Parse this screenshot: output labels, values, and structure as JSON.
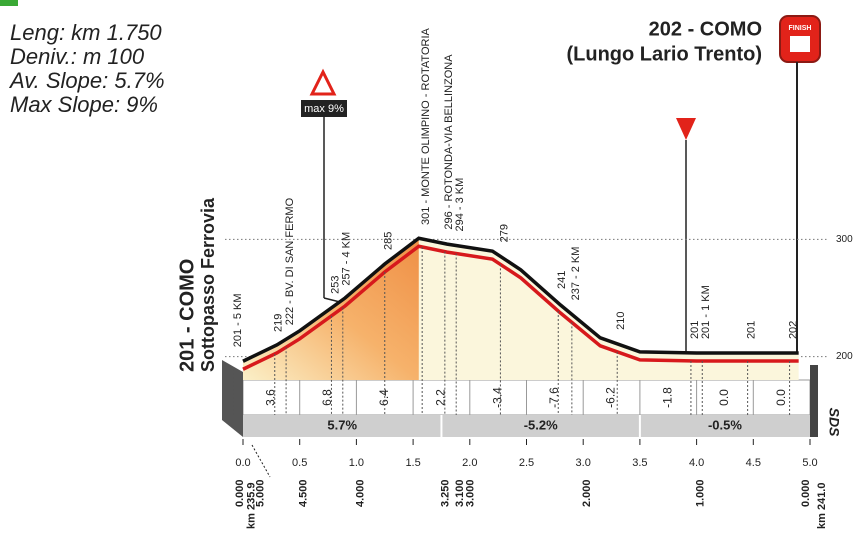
{
  "info": {
    "length": "Leng: km 1.750",
    "elevation_gain": "Deniv.: m 100",
    "average_slope": "Av. Slope: 5.7%",
    "max_slope": "Max Slope: 9%"
  },
  "start": {
    "name": "201 - COMO",
    "place": "Sottopasso Ferrovia"
  },
  "finish": {
    "name": "202 - COMO",
    "place": "(Lungo Lario Trento)",
    "icon": "FINISH"
  },
  "max_slope_marker": "max 9%",
  "brand": "SDS",
  "chart_data": {
    "type": "area",
    "x": [
      0,
      0.3,
      0.5,
      0.9,
      1.25,
      1.55,
      1.8,
      2.2,
      2.45,
      2.8,
      3.15,
      3.5,
      4.0,
      4.9
    ],
    "values": [
      196,
      210,
      222,
      250,
      279,
      301,
      296,
      290,
      274,
      244,
      216,
      204,
      203,
      203
    ],
    "xlim": [
      0,
      5.0
    ],
    "ylim": [
      180,
      320
    ],
    "xticks": [
      {
        "value": 0,
        "label": "0.0"
      },
      0.5,
      {
        "value": 1,
        "label": "1.0"
      },
      1.5,
      {
        "value": 2,
        "label": "2.0"
      },
      2.5,
      {
        "value": 3,
        "label": "3.0"
      },
      3.5,
      {
        "value": 4,
        "label": "4.0"
      },
      4.5,
      {
        "value": 5,
        "label": "5.0"
      }
    ],
    "yticks": [
      200,
      300
    ],
    "grid": true,
    "slopes": {
      "values": [
        3.6,
        6.8,
        6.4,
        2.2,
        -3.4,
        -7.6,
        -6.2,
        -1.8,
        0,
        0
      ],
      "value_labels": [
        "3.6",
        "6.8",
        "6.4",
        "2.2",
        "-3.4",
        "-7.6",
        "-6.2",
        "-1.8",
        "0.0",
        "0.0"
      ]
    },
    "sections": [
      {
        "from": 0,
        "to": 1.75,
        "value": 5.7,
        "label": "5.7%"
      },
      {
        "from": 1.75,
        "to": 3.5,
        "value": -5.2,
        "label": "-5.2%"
      },
      {
        "from": 3.5,
        "to": 5.0,
        "value": -0.5,
        "label": "-0.5%"
      }
    ],
    "waypoints": [
      {
        "x": -0.08,
        "label": "201 - 5 KM"
      },
      {
        "x": 0.28,
        "label": "219"
      },
      {
        "x": 0.38,
        "label": "222 - BV. DI SAN FERMO"
      },
      {
        "x": 0.78,
        "label": "253"
      },
      {
        "x": 0.88,
        "label": "257 - 4 KM"
      },
      {
        "x": 1.25,
        "label": "285"
      },
      {
        "x": 1.58,
        "label": "301 - MONTE OLIMPINO - ROTATORIA"
      },
      {
        "x": 1.78,
        "label": "296 - ROTONDA-VIA BELLINZONA"
      },
      {
        "x": 1.88,
        "label": "294 - 3 KM"
      },
      {
        "x": 2.27,
        "label": "279"
      },
      {
        "x": 2.78,
        "label": "241"
      },
      {
        "x": 2.9,
        "label": "237 - 2 KM"
      },
      {
        "x": 3.3,
        "label": "210"
      },
      {
        "x": 3.95,
        "label": "201"
      },
      {
        "x": 4.05,
        "label": "201 - 1 KM"
      },
      {
        "x": 4.45,
        "label": "201"
      },
      {
        "x": 4.82,
        "label": "202"
      }
    ],
    "distance_to_go": [
      {
        "x": -0.06,
        "label": "0.000"
      },
      {
        "x": 0.12,
        "label": "5.000"
      },
      {
        "x": 0.5,
        "label": "4.500"
      },
      {
        "x": 1.0,
        "label": "4.000"
      },
      {
        "x": 1.75,
        "label": "3.250"
      },
      {
        "x": 1.88,
        "label": "3.100"
      },
      {
        "x": 1.97,
        "label": "3.000"
      },
      {
        "x": 3.0,
        "label": "2.000"
      },
      {
        "x": 4.0,
        "label": "1.000"
      },
      {
        "x": 4.93,
        "label": "0.000"
      }
    ],
    "km_marks": [
      {
        "x": 0.04,
        "label": "km 235.9"
      },
      {
        "x": 5.07,
        "label": "km 241.0"
      }
    ]
  }
}
